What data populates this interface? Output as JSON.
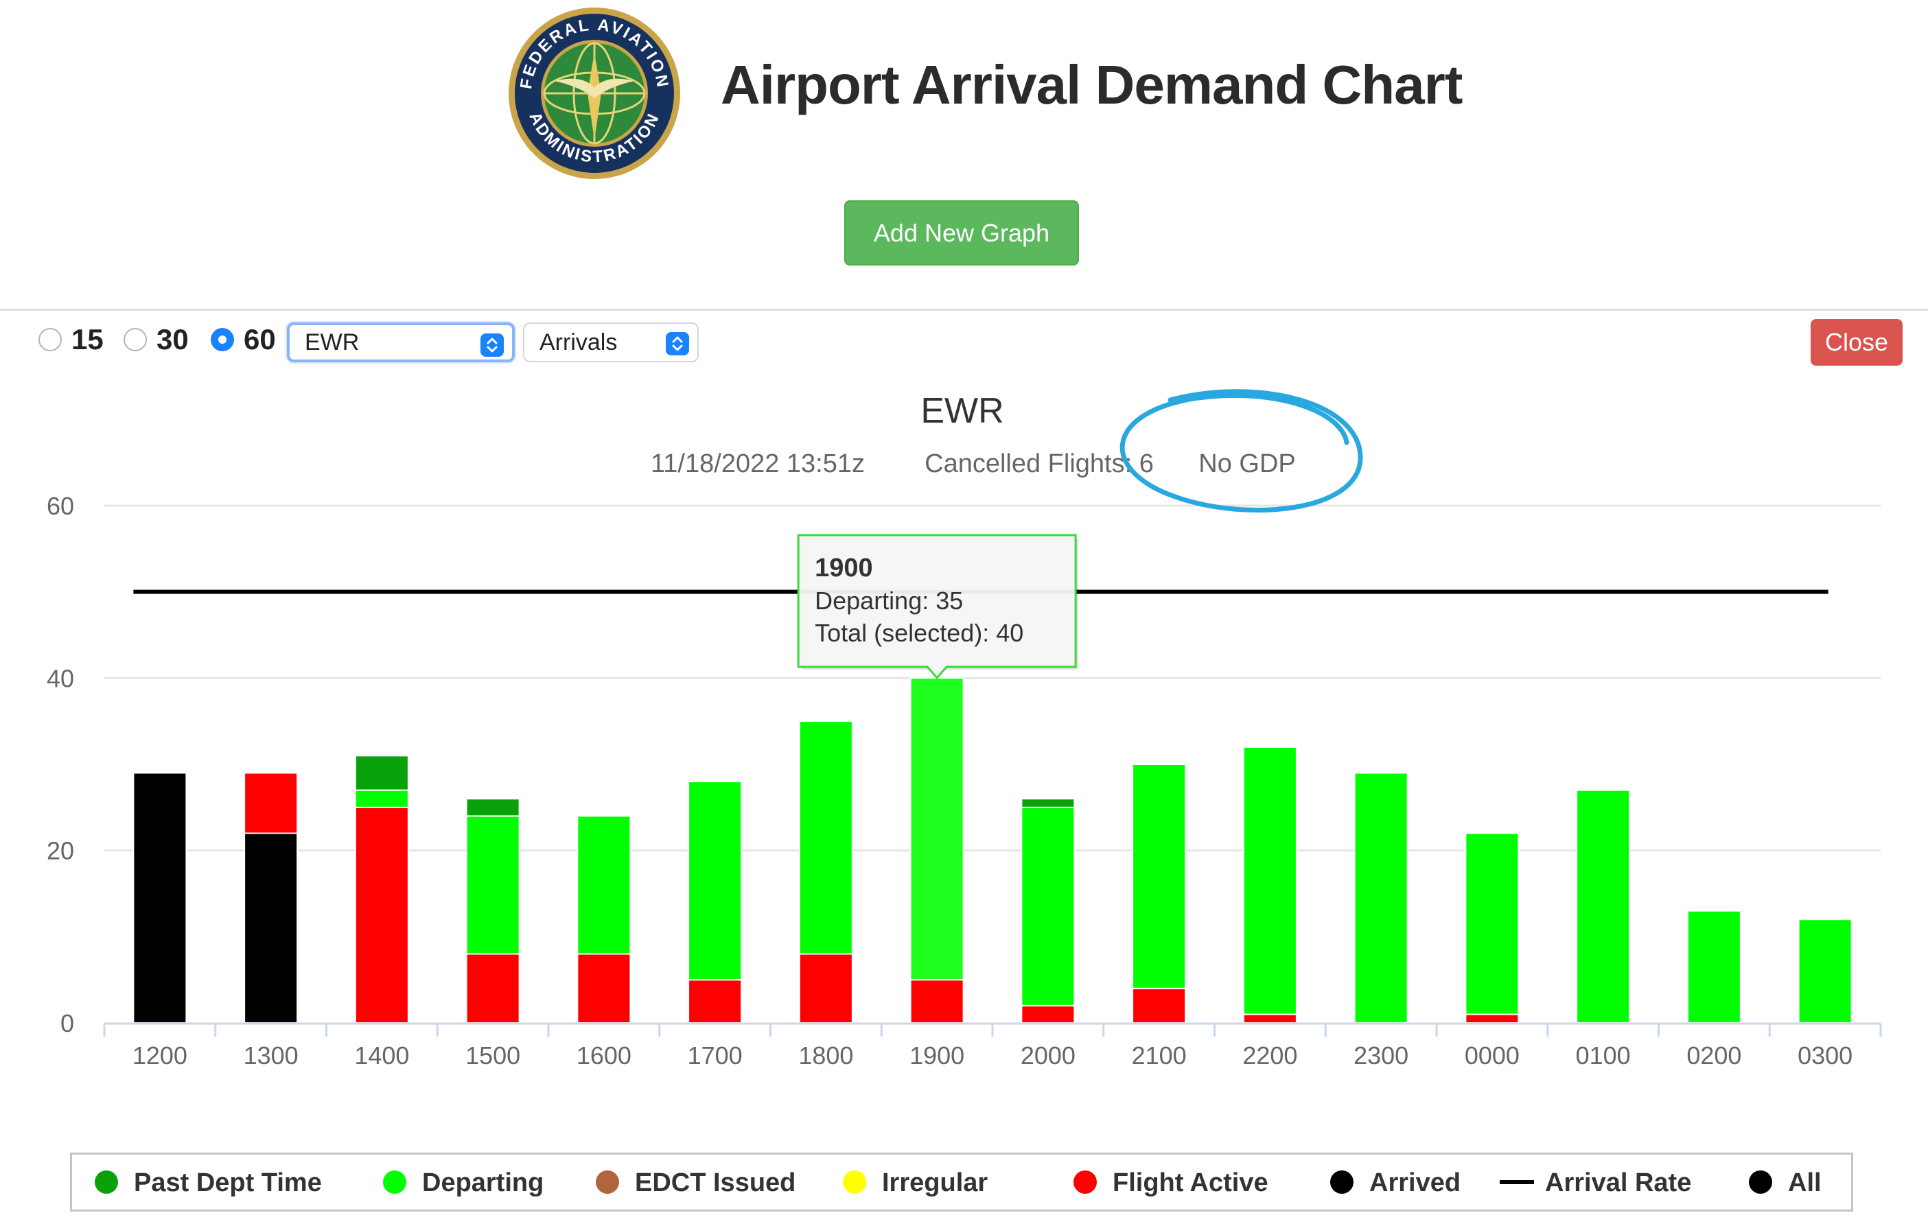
{
  "header": {
    "title": "Airport Arrival Demand Chart",
    "seal_text": "FEDERAL AVIATION ADMINISTRATION",
    "add_graph_label": "Add New Graph"
  },
  "controls": {
    "intervals": [
      {
        "label": "15",
        "checked": false
      },
      {
        "label": "30",
        "checked": false
      },
      {
        "label": "60",
        "checked": true
      }
    ],
    "airport_select": "EWR",
    "type_select": "Arrivals",
    "close_label": "Close"
  },
  "colors": {
    "past_dept_time": "#0aa20a",
    "departing": "#00ff00",
    "departing_highlight": "#1cff1c",
    "edct_issued": "#b2653a",
    "irregular": "#ffff00",
    "flight_active": "#ff0000",
    "arrived": "#000000",
    "arrival_rate": "#000000",
    "annotation": "#29a8e0"
  },
  "chart_data": {
    "type": "bar",
    "stacked": true,
    "title": "EWR",
    "subtitle": [
      "11/18/2022 13:51z",
      "Cancelled Flights: 6",
      "No GDP"
    ],
    "categories": [
      "1200",
      "1300",
      "1400",
      "1500",
      "1600",
      "1700",
      "1800",
      "1900",
      "2000",
      "2100",
      "2200",
      "2300",
      "0000",
      "0100",
      "0200",
      "0300"
    ],
    "series": [
      {
        "name": "Arrived",
        "key": "arrived",
        "values": [
          29,
          22,
          0,
          0,
          0,
          0,
          0,
          0,
          0,
          0,
          0,
          0,
          0,
          0,
          0,
          0
        ]
      },
      {
        "name": "Flight Active",
        "key": "flight_active",
        "values": [
          0,
          7,
          25,
          8,
          8,
          5,
          8,
          5,
          2,
          4,
          1,
          0,
          1,
          0,
          0,
          0
        ]
      },
      {
        "name": "Departing",
        "key": "departing",
        "values": [
          0,
          0,
          2,
          16,
          16,
          23,
          27,
          35,
          23,
          26,
          31,
          29,
          21,
          27,
          13,
          12
        ]
      },
      {
        "name": "Past Dept Time",
        "key": "past_dept_time",
        "values": [
          0,
          0,
          4,
          2,
          0,
          0,
          0,
          0,
          1,
          0,
          0,
          0,
          0,
          0,
          0,
          0
        ]
      }
    ],
    "arrival_rate": 50,
    "ylim": [
      0,
      60
    ],
    "yticks": [
      0,
      20,
      40,
      60
    ],
    "grid": true,
    "tooltip": {
      "category": "1900",
      "title": "1900",
      "lines": [
        "Departing: 35",
        "Total (selected): 40"
      ]
    },
    "legend": [
      {
        "label": "Past Dept Time",
        "marker": "dot",
        "key": "past_dept_time"
      },
      {
        "label": "Departing",
        "marker": "dot",
        "key": "departing"
      },
      {
        "label": "EDCT Issued",
        "marker": "dot",
        "key": "edct_issued"
      },
      {
        "label": "Irregular",
        "marker": "dot",
        "key": "irregular"
      },
      {
        "label": "Flight Active",
        "marker": "dot",
        "key": "flight_active"
      },
      {
        "label": "Arrived",
        "marker": "dot",
        "key": "arrived"
      },
      {
        "label": "Arrival Rate",
        "marker": "line",
        "key": "arrival_rate"
      },
      {
        "label": "All",
        "marker": "dot",
        "key": "arrived"
      }
    ],
    "legend_position": "bottom"
  }
}
